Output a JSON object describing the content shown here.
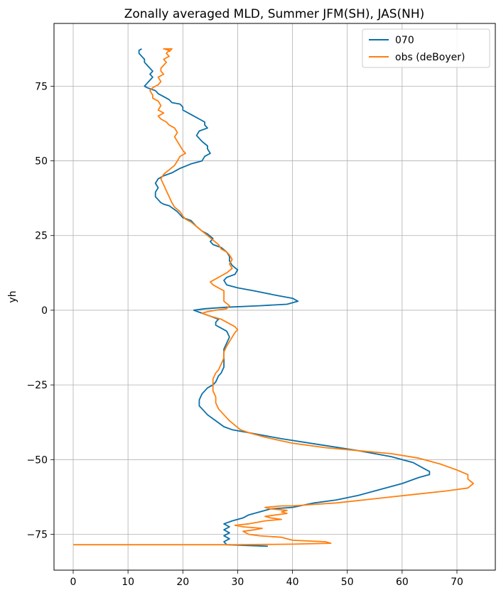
{
  "chart_data": {
    "type": "line",
    "title": "Zonally averaged MLD, Summer JFM(SH), JAS(NH)",
    "xlabel": "",
    "ylabel": "yh",
    "xlim": [
      -3.5,
      77
    ],
    "ylim": [
      -87,
      96
    ],
    "xticks": [
      0,
      10,
      20,
      30,
      40,
      50,
      60,
      70
    ],
    "yticks": [
      -75,
      -50,
      -25,
      0,
      25,
      50,
      75
    ],
    "xtick_labels": [
      "0",
      "10",
      "20",
      "30",
      "40",
      "50",
      "60",
      "70"
    ],
    "ytick_labels": [
      "−75",
      "−50",
      "−25",
      "0",
      "25",
      "50",
      "75"
    ],
    "grid": true,
    "legend_position": "upper-right",
    "series": [
      {
        "name": "070",
        "color": "#0a6fa8",
        "points": [
          [
            35.5,
            -79
          ],
          [
            28,
            -78.5
          ],
          [
            27.5,
            -77.5
          ],
          [
            28.5,
            -76.5
          ],
          [
            27.5,
            -75.5
          ],
          [
            28.5,
            -74.5
          ],
          [
            27.5,
            -73.5
          ],
          [
            28.5,
            -72.5
          ],
          [
            27.5,
            -71.5
          ],
          [
            29,
            -70.5
          ],
          [
            31,
            -69.5
          ],
          [
            32,
            -68.5
          ],
          [
            34,
            -67.5
          ],
          [
            36,
            -66.5
          ],
          [
            40,
            -66
          ],
          [
            44,
            -64.5
          ],
          [
            48,
            -63.5
          ],
          [
            52,
            -62
          ],
          [
            56,
            -60
          ],
          [
            60,
            -58
          ],
          [
            63,
            -56
          ],
          [
            65,
            -55
          ],
          [
            65,
            -54
          ],
          [
            64,
            -53
          ],
          [
            62,
            -51
          ],
          [
            58,
            -49
          ],
          [
            52,
            -47
          ],
          [
            45,
            -45
          ],
          [
            38,
            -43
          ],
          [
            32,
            -41
          ],
          [
            29,
            -40
          ],
          [
            27.5,
            -39
          ],
          [
            26,
            -37
          ],
          [
            24.5,
            -35
          ],
          [
            23.5,
            -33
          ],
          [
            23,
            -32
          ],
          [
            23,
            -30
          ],
          [
            23.5,
            -28
          ],
          [
            24.5,
            -26
          ],
          [
            25.5,
            -25
          ],
          [
            26,
            -24
          ],
          [
            26.5,
            -22
          ],
          [
            27,
            -21
          ],
          [
            27.5,
            -19
          ],
          [
            27.5,
            -16
          ],
          [
            27.5,
            -13
          ],
          [
            28,
            -11
          ],
          [
            28.5,
            -9
          ],
          [
            28,
            -7
          ],
          [
            27,
            -6
          ],
          [
            26,
            -5
          ],
          [
            26,
            -4
          ],
          [
            26.5,
            -3
          ],
          [
            25,
            -2
          ],
          [
            23.5,
            -1
          ],
          [
            22,
            0
          ],
          [
            24,
            0.5
          ],
          [
            28,
            1
          ],
          [
            34,
            1.5
          ],
          [
            39,
            2
          ],
          [
            41,
            3
          ],
          [
            40,
            4
          ],
          [
            37,
            5
          ],
          [
            33,
            6.5
          ],
          [
            30,
            7.5
          ],
          [
            28,
            8.5
          ],
          [
            27.5,
            10
          ],
          [
            28,
            11
          ],
          [
            29.5,
            12
          ],
          [
            30,
            13.5
          ],
          [
            29,
            15
          ],
          [
            28.5,
            16.5
          ],
          [
            28.5,
            18
          ],
          [
            28,
            19.5
          ],
          [
            27,
            21
          ],
          [
            25.5,
            22
          ],
          [
            25,
            23
          ],
          [
            25.5,
            24
          ],
          [
            24.5,
            25.5
          ],
          [
            23.5,
            26.5
          ],
          [
            22.5,
            28
          ],
          [
            21.5,
            30
          ],
          [
            20,
            31
          ],
          [
            19.5,
            32
          ],
          [
            19,
            33
          ],
          [
            17.5,
            35
          ],
          [
            16.5,
            35.5
          ],
          [
            16,
            36
          ],
          [
            15.5,
            37
          ],
          [
            15,
            38
          ],
          [
            15,
            39.5
          ],
          [
            15.5,
            41
          ],
          [
            15,
            42.5
          ],
          [
            15.5,
            44
          ],
          [
            16.5,
            45
          ],
          [
            18,
            46
          ],
          [
            19.5,
            47.5
          ],
          [
            21.5,
            49
          ],
          [
            23.5,
            50
          ],
          [
            24,
            51.5
          ],
          [
            25,
            52.5
          ],
          [
            24.5,
            54
          ],
          [
            24.5,
            55
          ],
          [
            23.5,
            56.5
          ],
          [
            23,
            57.5
          ],
          [
            22.5,
            58.5
          ],
          [
            23,
            60
          ],
          [
            24.5,
            61
          ],
          [
            24,
            62
          ],
          [
            24,
            63
          ],
          [
            23,
            64
          ],
          [
            22,
            65
          ],
          [
            21,
            66
          ],
          [
            20,
            67
          ],
          [
            20,
            68
          ],
          [
            19.5,
            69
          ],
          [
            18,
            69.5
          ],
          [
            17.5,
            70.5
          ],
          [
            16.5,
            71.5
          ],
          [
            15.5,
            72.5
          ],
          [
            15,
            73.5
          ],
          [
            13.5,
            74.5
          ],
          [
            13,
            75
          ],
          [
            13.5,
            76
          ],
          [
            14,
            77
          ],
          [
            14.5,
            78
          ],
          [
            14,
            79
          ],
          [
            14.5,
            80
          ],
          [
            14,
            81
          ],
          [
            13.5,
            82
          ],
          [
            13,
            83
          ],
          [
            13,
            84
          ],
          [
            12.5,
            85
          ],
          [
            12,
            86
          ],
          [
            12,
            87
          ],
          [
            12.5,
            87.5
          ]
        ]
      },
      {
        "name": "obs (deBoyer)",
        "color": "#ff7f0e",
        "points": [
          [
            0,
            -78.5
          ],
          [
            5,
            -78.5
          ],
          [
            20,
            -78.5
          ],
          [
            30,
            -78.5
          ],
          [
            40,
            -78.3
          ],
          [
            47,
            -78
          ],
          [
            46,
            -77.5
          ],
          [
            40,
            -77
          ],
          [
            38,
            -76
          ],
          [
            34,
            -75.5
          ],
          [
            32,
            -75
          ],
          [
            31,
            -74
          ],
          [
            33,
            -73.5
          ],
          [
            34.5,
            -73
          ],
          [
            31,
            -72.5
          ],
          [
            29.5,
            -72
          ],
          [
            32,
            -71.5
          ],
          [
            33.5,
            -71
          ],
          [
            35,
            -70.5
          ],
          [
            38,
            -70
          ],
          [
            36,
            -69.5
          ],
          [
            35,
            -69
          ],
          [
            39,
            -68
          ],
          [
            38,
            -67.5
          ],
          [
            39,
            -67
          ],
          [
            36,
            -66.5
          ],
          [
            35,
            -66
          ],
          [
            38,
            -65.5
          ],
          [
            40,
            -65.5
          ],
          [
            44,
            -65
          ],
          [
            48,
            -64.5
          ],
          [
            53,
            -63.5
          ],
          [
            58,
            -62.5
          ],
          [
            63,
            -61.5
          ],
          [
            68,
            -60.5
          ],
          [
            72,
            -59.5
          ],
          [
            73,
            -58
          ],
          [
            72,
            -56.5
          ],
          [
            72,
            -55
          ],
          [
            70,
            -53.5
          ],
          [
            67,
            -51.5
          ],
          [
            63,
            -49.5
          ],
          [
            58,
            -48
          ],
          [
            52,
            -47
          ],
          [
            46,
            -46
          ],
          [
            40,
            -44.5
          ],
          [
            35,
            -42.5
          ],
          [
            32,
            -41
          ],
          [
            30.5,
            -40
          ],
          [
            29.5,
            -38.5
          ],
          [
            28.5,
            -37
          ],
          [
            27.5,
            -35
          ],
          [
            26.5,
            -33
          ],
          [
            26,
            -31
          ],
          [
            26,
            -29
          ],
          [
            25.5,
            -27
          ],
          [
            25.5,
            -25
          ],
          [
            25.5,
            -23
          ],
          [
            26,
            -21
          ],
          [
            26.5,
            -20
          ],
          [
            27,
            -18
          ],
          [
            27.5,
            -16
          ],
          [
            27.5,
            -14
          ],
          [
            28,
            -12
          ],
          [
            28.5,
            -10.5
          ],
          [
            29,
            -9
          ],
          [
            29.5,
            -7.5
          ],
          [
            30,
            -6.5
          ],
          [
            29.5,
            -5.5
          ],
          [
            28.5,
            -4.5
          ],
          [
            27,
            -3
          ],
          [
            25,
            -2
          ],
          [
            23.5,
            -1
          ],
          [
            24.5,
            -0.5
          ],
          [
            26,
            0
          ],
          [
            28,
            0.5
          ],
          [
            28.5,
            1.5
          ],
          [
            27.5,
            3
          ],
          [
            27.5,
            5
          ],
          [
            27.5,
            6.5
          ],
          [
            26.5,
            7.5
          ],
          [
            25.5,
            8.5
          ],
          [
            25,
            9.5
          ],
          [
            26,
            10.5
          ],
          [
            27,
            11.5
          ],
          [
            28,
            12.5
          ],
          [
            29,
            14
          ],
          [
            28.5,
            15.5
          ],
          [
            29,
            17
          ],
          [
            28.5,
            18.5
          ],
          [
            28,
            19.5
          ],
          [
            27,
            20.5
          ],
          [
            26.5,
            22
          ],
          [
            25.5,
            23.5
          ],
          [
            24.5,
            25
          ],
          [
            23.5,
            26.5
          ],
          [
            22.5,
            28
          ],
          [
            21.5,
            29.5
          ],
          [
            20.5,
            30.5
          ],
          [
            20,
            31.5
          ],
          [
            19.5,
            33
          ],
          [
            18.5,
            34.5
          ],
          [
            18,
            36
          ],
          [
            17.5,
            38
          ],
          [
            17,
            40
          ],
          [
            16.5,
            42
          ],
          [
            16,
            44
          ],
          [
            16.5,
            45.5
          ],
          [
            17.5,
            47
          ],
          [
            18.5,
            48.5
          ],
          [
            19,
            50
          ],
          [
            19.5,
            51.5
          ],
          [
            20.5,
            52.5
          ],
          [
            20,
            53.5
          ],
          [
            19.5,
            55
          ],
          [
            19,
            56.5
          ],
          [
            18.5,
            58
          ],
          [
            19,
            59.5
          ],
          [
            18.5,
            61
          ],
          [
            17.5,
            62
          ],
          [
            17,
            63
          ],
          [
            16,
            64
          ],
          [
            15.5,
            65
          ],
          [
            16.5,
            66
          ],
          [
            15.5,
            67
          ],
          [
            16,
            68.5
          ],
          [
            15.5,
            70
          ],
          [
            14.5,
            71
          ],
          [
            14.5,
            72
          ],
          [
            14,
            73.5
          ],
          [
            14.5,
            74.5
          ],
          [
            15.5,
            75.5
          ],
          [
            16,
            76.5
          ],
          [
            15.5,
            78
          ],
          [
            16.5,
            79
          ],
          [
            16,
            80
          ],
          [
            16,
            81
          ],
          [
            16.5,
            82
          ],
          [
            17,
            83
          ],
          [
            16.5,
            84
          ],
          [
            17.5,
            85
          ],
          [
            17,
            86
          ],
          [
            17.5,
            87
          ],
          [
            16.5,
            87.5
          ],
          [
            18,
            87.5
          ],
          [
            17.5,
            86.5
          ]
        ]
      }
    ]
  }
}
